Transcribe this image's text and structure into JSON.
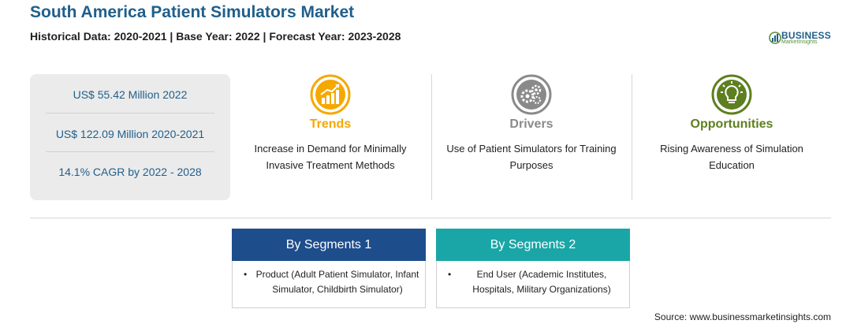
{
  "header": {
    "title": "South America Patient Simulators Market",
    "subtitle": "Historical Data: 2020-2021 | Base Year: 2022 | Forecast Year: 2023-2028",
    "logo_brand": "BUSINESS",
    "logo_sub": "MarketInsights"
  },
  "stats": [
    "US$ 55.42 Million 2022",
    "US$ 122.09 Million 2020-2021",
    "14.1% CAGR by 2022 - 2028"
  ],
  "columns": [
    {
      "heading": "Trends",
      "text": "Increase in Demand for Minimally Invasive Treatment Methods",
      "color": "#f5a800",
      "icon": "trend-chart-icon"
    },
    {
      "heading": "Drivers",
      "text": "Use of Patient Simulators for Training Purposes",
      "color": "#8a8a8a",
      "icon": "gears-icon"
    },
    {
      "heading": "Opportunities",
      "text": "Rising Awareness of Simulation Education",
      "color": "#5e7f1f",
      "icon": "lightbulb-icon"
    }
  ],
  "segments": [
    {
      "title": "By Segments 1",
      "item": "Product (Adult Patient Simulator, Infant Simulator, Childbirth Simulator)",
      "color": "#1e4d8c"
    },
    {
      "title": "By Segments 2",
      "item": "End User (Academic Institutes, Hospitals, Military Organizations)",
      "color": "#1aa6a6"
    }
  ],
  "source": "Source: www.businessmarketinsights.com"
}
